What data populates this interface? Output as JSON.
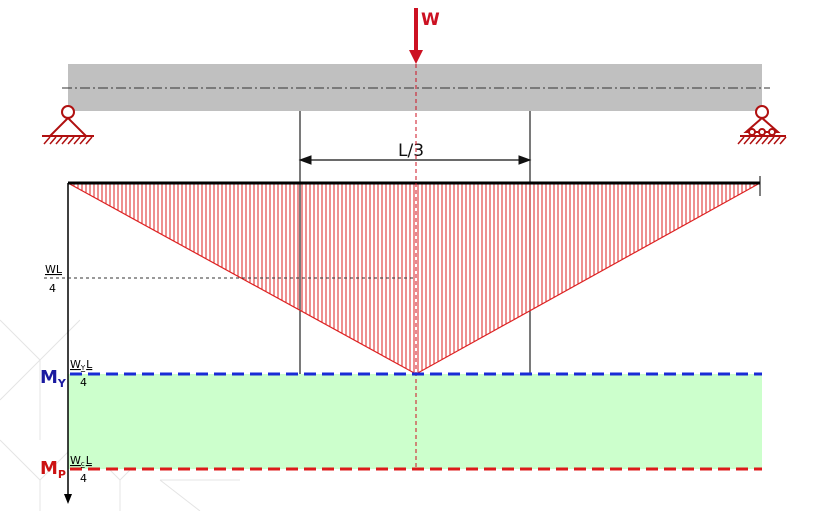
{
  "labels": {
    "load": "W",
    "span_dim": "L/3",
    "wl_num": "WL",
    "wl_den": "4",
    "my_letter": "M",
    "my_sub": "Y",
    "my_num_w": "W",
    "my_num_sub": "Y",
    "my_num_l": "L",
    "my_den": "4",
    "mp_letter": "M",
    "mp_sub": "P",
    "mp_num_w": "W",
    "mp_num_sub": "c",
    "mp_num_l": "L",
    "mp_den": "4"
  },
  "colors": {
    "load_arrow": "#cc1122",
    "beam_fill": "#c0c0c0",
    "moment_hatch": "#dd2222",
    "my_line": "#1a2bd6",
    "mp_line": "#dd1a1a",
    "plastic_zone": "#ccffcc",
    "my_label": "#1a1aa0",
    "mp_label": "#cc1111"
  }
}
